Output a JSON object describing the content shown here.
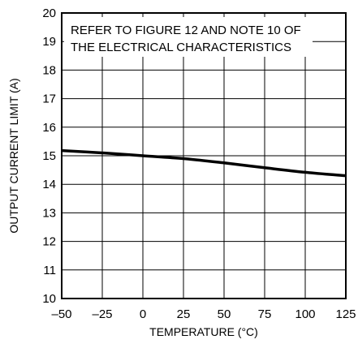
{
  "chart_data": {
    "type": "line",
    "title": "",
    "xlabel": "TEMPERATURE (°C)",
    "ylabel": "OUTPUT CURRENT LIMIT (A)",
    "xlim": [
      -50,
      125
    ],
    "ylim": [
      10,
      20
    ],
    "x_ticks": [
      -50,
      -25,
      0,
      25,
      50,
      75,
      100,
      125
    ],
    "y_ticks": [
      10,
      11,
      12,
      13,
      14,
      15,
      16,
      17,
      18,
      19,
      20
    ],
    "x_tick_labels": [
      "–50",
      "–25",
      "0",
      "25",
      "50",
      "75",
      "100",
      "125"
    ],
    "y_tick_labels": [
      "10",
      "11",
      "12",
      "13",
      "14",
      "15",
      "16",
      "17",
      "18",
      "19",
      "20"
    ],
    "grid": true,
    "series": [
      {
        "x": [
          -50,
          -25,
          0,
          25,
          50,
          75,
          100,
          125
        ],
        "y": [
          15.18,
          15.1,
          15.0,
          14.9,
          14.75,
          14.58,
          14.42,
          14.3
        ]
      }
    ],
    "annotations": [
      "REFER TO FIGURE 12 AND NOTE 10 OF",
      "THE ELECTRICAL CHARACTERISTICS"
    ],
    "colors": {
      "line": "#000000",
      "grid": "#000000",
      "background": "#ffffff"
    }
  }
}
